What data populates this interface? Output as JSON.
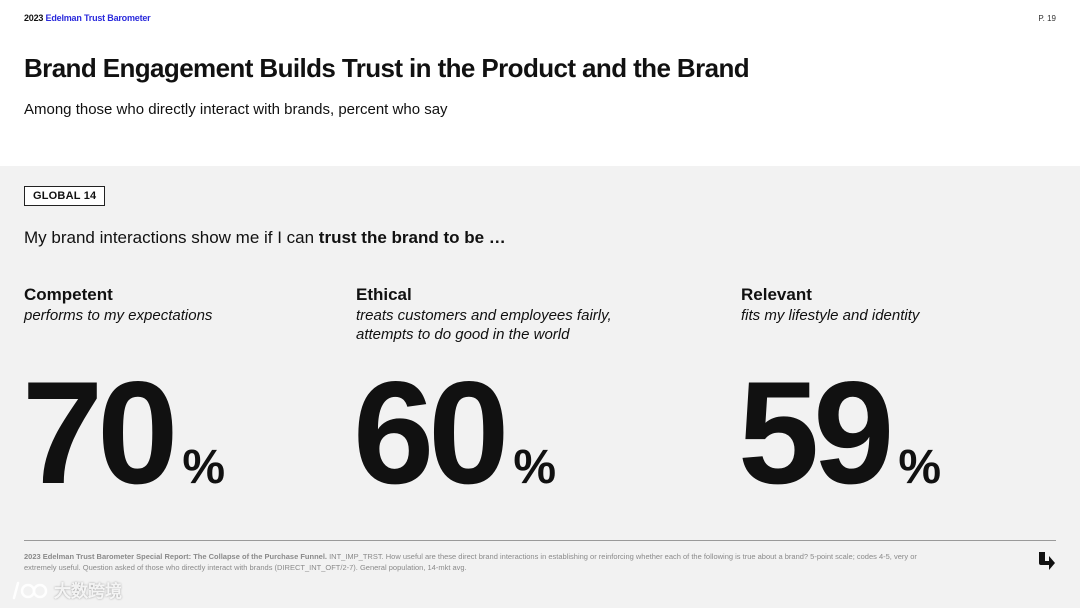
{
  "header": {
    "year": "2023",
    "brand": "Edelman Trust Barometer",
    "page_number": "P. 19",
    "title": "Brand Engagement Builds Trust in the Product and the Brand",
    "subtitle": "Among those who directly interact with brands, percent who say"
  },
  "badge": "GLOBAL 14",
  "lead": {
    "prefix": "My brand interactions show me if I can ",
    "bold": "trust the brand to be …"
  },
  "metrics": [
    {
      "label": "Competent",
      "description": "performs to my expectations",
      "value": "70",
      "unit": "%"
    },
    {
      "label": "Ethical",
      "description": "treats customers and employees fairly, attempts to do good in the world",
      "value": "60",
      "unit": "%"
    },
    {
      "label": "Relevant",
      "description": "fits my lifestyle and identity",
      "value": "59",
      "unit": "%"
    }
  ],
  "footnote": {
    "bold": "2023 Edelman Trust Barometer Special Report: The Collapse of the Purchase Funnel.",
    "text": " INT_IMP_TRST. How useful are these direct brand interactions in establishing or reinforcing whether each of the following is true about a brand? 5-point scale; codes 4-5, very or extremely useful. Question asked of those who directly interact with brands (DIRECT_INT_OFT/2-7). General population, 14-mkt avg."
  },
  "watermark": "大数跨境",
  "icons": {
    "next": "arrow-down-right-icon",
    "watermark_logo": "watermark-logo-icon"
  },
  "colors": {
    "brand_accent": "#2b2bdc",
    "header_bg": "#ffffff",
    "body_bg": "#f2f2f2",
    "text": "#111111"
  }
}
